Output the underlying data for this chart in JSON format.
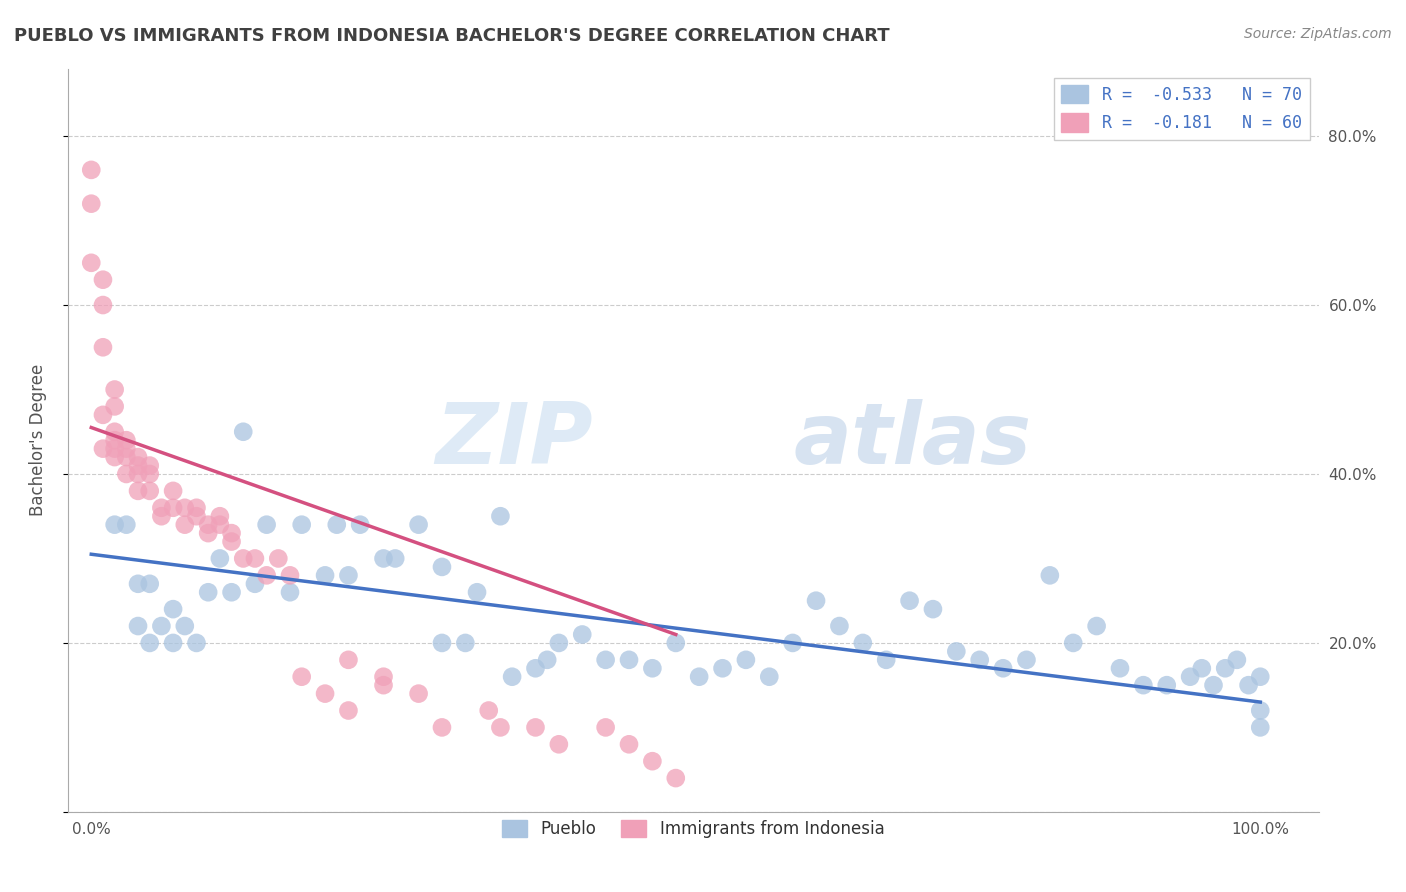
{
  "title": "PUEBLO VS IMMIGRANTS FROM INDONESIA BACHELOR'S DEGREE CORRELATION CHART",
  "source": "Source: ZipAtlas.com",
  "ylabel": "Bachelor's Degree",
  "ytick_vals": [
    0.0,
    0.2,
    0.4,
    0.6,
    0.8
  ],
  "ytick_labels": [
    "",
    "20.0%",
    "40.0%",
    "60.0%",
    "80.0%"
  ],
  "xtick_vals": [
    0.0,
    1.0
  ],
  "xtick_labels": [
    "0.0%",
    "100.0%"
  ],
  "xlim": [
    -0.02,
    1.05
  ],
  "ylim": [
    0.0,
    0.88
  ],
  "blue_R": -0.533,
  "blue_N": 70,
  "pink_R": -0.181,
  "pink_N": 60,
  "blue_color": "#aac4e0",
  "pink_color": "#f0a0b8",
  "blue_line_color": "#4472c4",
  "pink_line_color": "#d45080",
  "watermark_zip": "ZIP",
  "watermark_atlas": "atlas",
  "title_color": "#404040",
  "legend_text_color": "#4472c4",
  "background_color": "#ffffff",
  "grid_color": "#cccccc",
  "blue_x": [
    0.02,
    0.03,
    0.04,
    0.04,
    0.05,
    0.05,
    0.06,
    0.07,
    0.07,
    0.08,
    0.09,
    0.1,
    0.11,
    0.12,
    0.13,
    0.14,
    0.15,
    0.17,
    0.18,
    0.2,
    0.21,
    0.22,
    0.23,
    0.25,
    0.26,
    0.28,
    0.3,
    0.3,
    0.32,
    0.33,
    0.35,
    0.36,
    0.38,
    0.39,
    0.4,
    0.42,
    0.44,
    0.46,
    0.48,
    0.5,
    0.52,
    0.54,
    0.56,
    0.58,
    0.6,
    0.62,
    0.64,
    0.66,
    0.68,
    0.7,
    0.72,
    0.74,
    0.76,
    0.78,
    0.8,
    0.82,
    0.84,
    0.86,
    0.88,
    0.9,
    0.92,
    0.94,
    0.95,
    0.96,
    0.97,
    0.98,
    0.99,
    1.0,
    1.0,
    1.0
  ],
  "blue_y": [
    0.34,
    0.34,
    0.27,
    0.22,
    0.27,
    0.2,
    0.22,
    0.24,
    0.2,
    0.22,
    0.2,
    0.26,
    0.3,
    0.26,
    0.45,
    0.27,
    0.34,
    0.26,
    0.34,
    0.28,
    0.34,
    0.28,
    0.34,
    0.3,
    0.3,
    0.34,
    0.2,
    0.29,
    0.2,
    0.26,
    0.35,
    0.16,
    0.17,
    0.18,
    0.2,
    0.21,
    0.18,
    0.18,
    0.17,
    0.2,
    0.16,
    0.17,
    0.18,
    0.16,
    0.2,
    0.25,
    0.22,
    0.2,
    0.18,
    0.25,
    0.24,
    0.19,
    0.18,
    0.17,
    0.18,
    0.28,
    0.2,
    0.22,
    0.17,
    0.15,
    0.15,
    0.16,
    0.17,
    0.15,
    0.17,
    0.18,
    0.15,
    0.16,
    0.1,
    0.12
  ],
  "pink_x": [
    0.0,
    0.0,
    0.0,
    0.01,
    0.01,
    0.01,
    0.01,
    0.01,
    0.02,
    0.02,
    0.02,
    0.02,
    0.02,
    0.02,
    0.03,
    0.03,
    0.03,
    0.03,
    0.04,
    0.04,
    0.04,
    0.04,
    0.05,
    0.05,
    0.05,
    0.06,
    0.06,
    0.07,
    0.07,
    0.08,
    0.08,
    0.09,
    0.09,
    0.1,
    0.1,
    0.11,
    0.11,
    0.12,
    0.12,
    0.13,
    0.14,
    0.15,
    0.16,
    0.17,
    0.18,
    0.2,
    0.22,
    0.22,
    0.25,
    0.25,
    0.28,
    0.3,
    0.34,
    0.35,
    0.38,
    0.4,
    0.44,
    0.46,
    0.48,
    0.5
  ],
  "pink_y": [
    0.76,
    0.72,
    0.65,
    0.63,
    0.6,
    0.55,
    0.47,
    0.43,
    0.5,
    0.48,
    0.45,
    0.44,
    0.43,
    0.42,
    0.44,
    0.43,
    0.42,
    0.4,
    0.42,
    0.41,
    0.4,
    0.38,
    0.41,
    0.4,
    0.38,
    0.36,
    0.35,
    0.38,
    0.36,
    0.36,
    0.34,
    0.36,
    0.35,
    0.34,
    0.33,
    0.35,
    0.34,
    0.33,
    0.32,
    0.3,
    0.3,
    0.28,
    0.3,
    0.28,
    0.16,
    0.14,
    0.18,
    0.12,
    0.16,
    0.15,
    0.14,
    0.1,
    0.12,
    0.1,
    0.1,
    0.08,
    0.1,
    0.08,
    0.06,
    0.04
  ],
  "blue_line_x": [
    0.0,
    1.0
  ],
  "blue_line_y": [
    0.305,
    0.13
  ],
  "pink_line_x": [
    0.0,
    0.5
  ],
  "pink_line_y": [
    0.455,
    0.21
  ]
}
